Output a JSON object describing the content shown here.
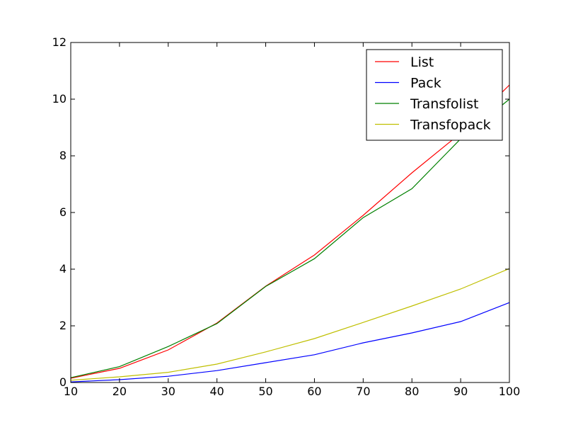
{
  "chart_data": {
    "type": "line",
    "title": "",
    "xlabel": "",
    "ylabel": "",
    "xlim": [
      10,
      100
    ],
    "ylim": [
      0,
      12
    ],
    "xticks": [
      10,
      20,
      30,
      40,
      50,
      60,
      70,
      80,
      90,
      100
    ],
    "yticks": [
      0,
      2,
      4,
      6,
      8,
      10,
      12
    ],
    "x": [
      10,
      20,
      30,
      40,
      50,
      60,
      70,
      80,
      90,
      100
    ],
    "grid": false,
    "legend_position": "top-right",
    "series": [
      {
        "name": "List",
        "color": "#ff0000",
        "values": [
          0.15,
          0.5,
          1.15,
          2.1,
          3.4,
          4.5,
          5.9,
          7.4,
          8.8,
          10.5
        ]
      },
      {
        "name": "Pack",
        "color": "#0000ff",
        "values": [
          0.02,
          0.1,
          0.22,
          0.42,
          0.7,
          0.98,
          1.4,
          1.75,
          2.15,
          2.82
        ]
      },
      {
        "name": "Transfolist",
        "color": "#008000",
        "values": [
          0.17,
          0.56,
          1.27,
          2.08,
          3.39,
          4.37,
          5.82,
          6.84,
          8.6,
          10.0
        ]
      },
      {
        "name": "Transfopack",
        "color": "#bfbf00",
        "values": [
          0.08,
          0.2,
          0.36,
          0.65,
          1.08,
          1.55,
          2.12,
          2.7,
          3.3,
          4.02
        ]
      }
    ]
  }
}
